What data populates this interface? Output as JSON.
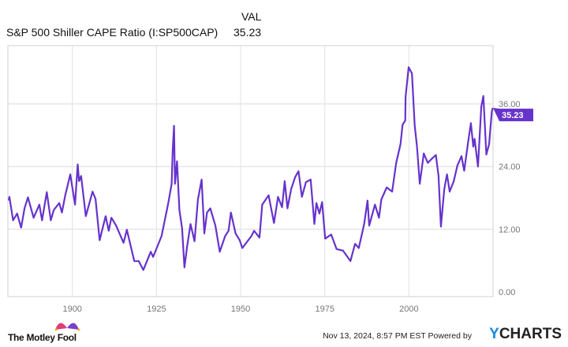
{
  "header": {
    "value_column_label": "VAL",
    "series_label": "S&P 500 Shiller CAPE Ratio (I:SP500CAP)",
    "series_value": "35.23"
  },
  "footer": {
    "brand": "The Motley Fool",
    "timestamp": "Nov 13, 2024, 8:57 PM EST",
    "powered_by": "Powered by",
    "provider_y": "Y",
    "provider_rest": "CHARTS"
  },
  "colors": {
    "line": "#6633cc",
    "grid": "#e6e6e6",
    "tick_text": "#777777"
  },
  "chart_data": {
    "type": "line",
    "title": "",
    "xlabel": "",
    "ylabel": "",
    "xlim": [
      1880.8,
      2025.2
    ],
    "ylim": [
      0,
      40
    ],
    "grid": true,
    "y_axis_side": "right",
    "x_ticks": [
      1900,
      1925,
      1950,
      1975,
      2000
    ],
    "x_tick_labels": [
      "1900",
      "1925",
      "1950",
      "1975",
      "2000"
    ],
    "y_ticks": [
      0,
      12,
      24,
      36
    ],
    "y_tick_labels": [
      "0.00",
      "12.00",
      "24.00",
      "36.00"
    ],
    "last_value_label": "35.23",
    "series": [
      {
        "name": "S&P 500 Shiller CAPE Ratio (I:SP500CAP)",
        "x": [
          1881.1,
          1881.3,
          1882.4,
          1883.6,
          1884.8,
          1885.8,
          1886.8,
          1888.5,
          1890.2,
          1891.0,
          1892.4,
          1893.6,
          1894.5,
          1896.1,
          1896.9,
          1897.9,
          1899.4,
          1900.8,
          1901.6,
          1902.0,
          1902.6,
          1904.0,
          1906.0,
          1906.9,
          1908.1,
          1909.9,
          1910.8,
          1911.6,
          1913.0,
          1915.2,
          1916.2,
          1918.4,
          1919.7,
          1921.1,
          1923.3,
          1924.0,
          1926.5,
          1928.5,
          1929.5,
          1929.8,
          1930.2,
          1930.5,
          1931.1,
          1931.8,
          1932.6,
          1933.3,
          1934.1,
          1935.1,
          1936.3,
          1937.3,
          1938.4,
          1939.2,
          1940.0,
          1941.0,
          1942.5,
          1943.8,
          1945.4,
          1946.4,
          1947.1,
          1948.5,
          1949.7,
          1950.5,
          1953.2,
          1954.0,
          1955.6,
          1956.4,
          1958.3,
          1959.9,
          1961.1,
          1962.3,
          1963.1,
          1963.9,
          1965.0,
          1966.2,
          1967.2,
          1968.2,
          1969.4,
          1970.8,
          1971.9,
          1972.5,
          1973.4,
          1974.2,
          1975.1,
          1976.9,
          1978.5,
          1980.4,
          1982.6,
          1984.0,
          1985.1,
          1986.7,
          1987.7,
          1988.2,
          1989.9,
          1991.1,
          1991.8,
          1993.4,
          1995.0,
          1996.2,
          1997.5,
          1998.1,
          1998.9,
          1999.0,
          1999.9,
          2000.9,
          2001.7,
          2002.4,
          2003.2,
          2004.4,
          2005.6,
          2006.8,
          2008.0,
          2008.8,
          2009.5,
          2010.5,
          2011.3,
          2012.1,
          2013.3,
          2014.4,
          2015.6,
          2016.4,
          2017.6,
          2018.4,
          2019.1,
          2019.5,
          2020.5,
          2021.5,
          2022.1,
          2023.0,
          2023.8,
          2024.6,
          2024.9
        ],
        "values": [
          17.5,
          18.2,
          13.7,
          15.0,
          12.3,
          16.0,
          18.1,
          14.2,
          16.7,
          13.7,
          19.1,
          13.7,
          15.7,
          17.0,
          15.2,
          18.5,
          22.5,
          16.7,
          24.4,
          21.2,
          22.2,
          14.5,
          19.2,
          17.8,
          9.9,
          14.5,
          11.7,
          14.2,
          12.7,
          9.4,
          11.9,
          5.9,
          5.9,
          4.2,
          7.7,
          6.7,
          10.7,
          17.0,
          20.7,
          27.0,
          31.8,
          20.7,
          25.0,
          15.7,
          12.2,
          4.7,
          8.7,
          13.0,
          9.7,
          17.7,
          21.5,
          11.2,
          15.2,
          16.0,
          12.7,
          7.7,
          10.7,
          11.7,
          15.2,
          11.2,
          9.9,
          8.4,
          10.7,
          11.7,
          10.4,
          16.7,
          18.5,
          13.2,
          18.2,
          16.2,
          21.2,
          16.0,
          19.7,
          22.0,
          23.1,
          18.2,
          21.0,
          21.5,
          13.0,
          17.0,
          15.0,
          17.2,
          10.2,
          11.0,
          8.2,
          7.9,
          5.9,
          9.2,
          8.4,
          13.0,
          17.5,
          12.7,
          16.7,
          14.2,
          17.7,
          20.0,
          19.2,
          24.7,
          28.3,
          32.0,
          32.8,
          37.3,
          43.0,
          41.8,
          31.8,
          27.8,
          20.7,
          26.5,
          24.7,
          25.5,
          26.2,
          22.2,
          12.5,
          19.7,
          22.5,
          19.2,
          21.2,
          24.2,
          26.0,
          23.2,
          28.8,
          32.3,
          27.8,
          29.3,
          24.0,
          35.5,
          37.5,
          26.3,
          28.3,
          34.5,
          35.23
        ]
      }
    ]
  }
}
